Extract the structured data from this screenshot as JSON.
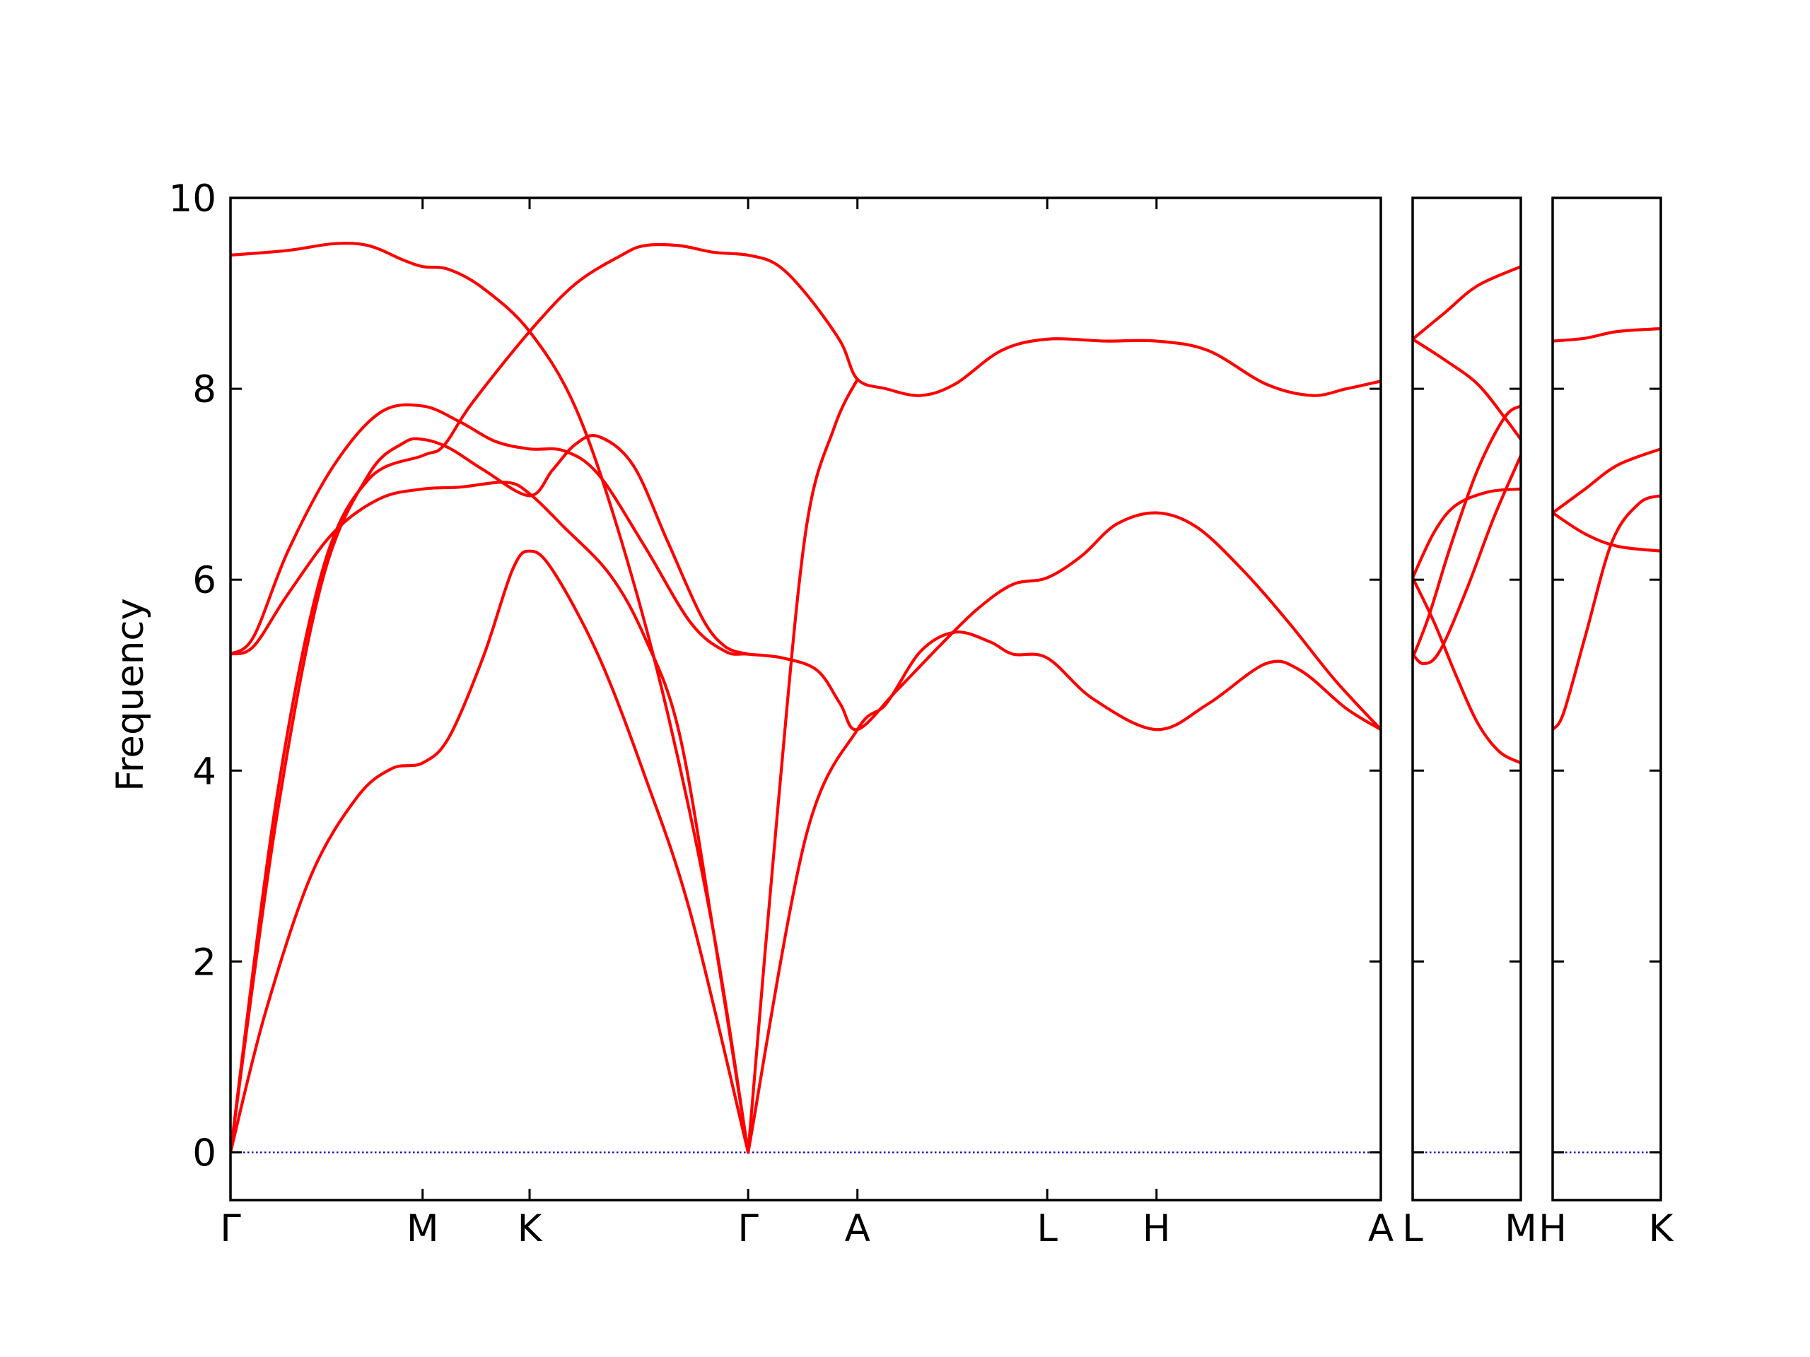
{
  "chart_data": {
    "type": "line",
    "title": "",
    "ylabel": "Frequency",
    "xlabel": "",
    "ylim": [
      -0.5,
      10
    ],
    "yticks": [
      0,
      2,
      4,
      6,
      8,
      10
    ],
    "grid": false,
    "line_color": "#ff0000",
    "zero_line_color": "#0000cc",
    "frame_color": "#000000",
    "panels": [
      {
        "id": "main",
        "x_range": [
          0,
          10
        ],
        "ticks": [
          {
            "x": 0,
            "label": "Γ"
          },
          {
            "x": 1.67,
            "label": "M"
          },
          {
            "x": 2.6,
            "label": "K"
          },
          {
            "x": 4.5,
            "label": "Γ"
          },
          {
            "x": 5.45,
            "label": "A"
          },
          {
            "x": 7.1,
            "label": "L"
          },
          {
            "x": 8.05,
            "label": "H"
          },
          {
            "x": 10,
            "label": "A"
          }
        ],
        "series": [
          {
            "values": [
              [
                0,
                9.4
              ],
              [
                0.5,
                9.45
              ],
              [
                0.9,
                9.52
              ],
              [
                1.2,
                9.5
              ],
              [
                1.5,
                9.35
              ],
              [
                1.67,
                9.28
              ],
              [
                1.9,
                9.25
              ],
              [
                2.2,
                9.05
              ],
              [
                2.6,
                8.6
              ],
              [
                3.0,
                7.8
              ],
              [
                3.4,
                6.4
              ],
              [
                3.8,
                4.6
              ],
              [
                4.2,
                2.3
              ],
              [
                4.5,
                0
              ]
            ]
          },
          {
            "values": [
              [
                0,
                0
              ],
              [
                0.4,
                3.7
              ],
              [
                0.8,
                6.1
              ],
              [
                1.2,
                7.05
              ],
              [
                1.67,
                7.3
              ],
              [
                1.85,
                7.4
              ],
              [
                2.1,
                7.85
              ],
              [
                2.6,
                8.6
              ],
              [
                3.0,
                9.1
              ],
              [
                3.4,
                9.4
              ],
              [
                3.6,
                9.5
              ],
              [
                3.9,
                9.5
              ],
              [
                4.2,
                9.43
              ],
              [
                4.5,
                9.4
              ],
              [
                4.75,
                9.3
              ],
              [
                5.0,
                9.0
              ],
              [
                5.3,
                8.5
              ],
              [
                5.45,
                8.1
              ],
              [
                5.7,
                8.0
              ],
              [
                6.0,
                7.93
              ],
              [
                6.3,
                8.05
              ],
              [
                6.7,
                8.4
              ],
              [
                7.1,
                8.52
              ],
              [
                7.6,
                8.5
              ],
              [
                8.05,
                8.5
              ],
              [
                8.5,
                8.4
              ],
              [
                9.0,
                8.05
              ],
              [
                9.4,
                7.93
              ],
              [
                9.7,
                8.0
              ],
              [
                10,
                8.08
              ]
            ]
          },
          {
            "values": [
              [
                0,
                5.22
              ],
              [
                0.2,
                5.3
              ],
              [
                0.5,
                5.85
              ],
              [
                0.9,
                6.5
              ],
              [
                1.3,
                6.85
              ],
              [
                1.67,
                6.95
              ],
              [
                2.0,
                6.97
              ],
              [
                2.4,
                7.02
              ],
              [
                2.6,
                6.9
              ],
              [
                2.9,
                6.55
              ],
              [
                3.3,
                6.05
              ],
              [
                3.6,
                5.4
              ],
              [
                3.9,
                4.4
              ],
              [
                4.2,
                2.3
              ],
              [
                4.5,
                0
              ]
            ]
          },
          {
            "values": [
              [
                0,
                5.22
              ],
              [
                0.2,
                5.4
              ],
              [
                0.5,
                6.3
              ],
              [
                0.9,
                7.2
              ],
              [
                1.3,
                7.75
              ],
              [
                1.67,
                7.82
              ],
              [
                2.0,
                7.65
              ],
              [
                2.3,
                7.45
              ],
              [
                2.6,
                7.37
              ],
              [
                2.9,
                7.35
              ],
              [
                3.2,
                7.1
              ],
              [
                3.6,
                6.35
              ],
              [
                4.0,
                5.55
              ],
              [
                4.3,
                5.25
              ],
              [
                4.5,
                5.22
              ],
              [
                4.8,
                5.18
              ],
              [
                5.1,
                5.05
              ],
              [
                5.3,
                4.7
              ],
              [
                5.45,
                4.43
              ],
              [
                5.8,
                4.85
              ],
              [
                6.2,
                5.35
              ],
              [
                6.5,
                5.7
              ],
              [
                6.8,
                5.95
              ],
              [
                7.1,
                6.02
              ],
              [
                7.4,
                6.25
              ],
              [
                7.7,
                6.58
              ],
              [
                8.05,
                6.7
              ],
              [
                8.4,
                6.55
              ],
              [
                8.8,
                6.1
              ],
              [
                9.2,
                5.55
              ],
              [
                9.6,
                4.95
              ],
              [
                10,
                4.43
              ]
            ]
          },
          {
            "values": [
              [
                0,
                0
              ],
              [
                0.4,
                3.5
              ],
              [
                0.8,
                6.0
              ],
              [
                1.2,
                7.1
              ],
              [
                1.5,
                7.43
              ],
              [
                1.67,
                7.47
              ],
              [
                1.9,
                7.38
              ],
              [
                2.2,
                7.15
              ],
              [
                2.6,
                6.88
              ],
              [
                2.8,
                7.15
              ],
              [
                3.0,
                7.42
              ],
              [
                3.2,
                7.5
              ],
              [
                3.5,
                7.2
              ],
              [
                3.8,
                6.4
              ],
              [
                4.1,
                5.6
              ],
              [
                4.3,
                5.3
              ],
              [
                4.5,
                5.22
              ]
            ]
          },
          {
            "values": [
              [
                0,
                0
              ],
              [
                0.3,
                1.45
              ],
              [
                0.7,
                2.9
              ],
              [
                1.1,
                3.72
              ],
              [
                1.4,
                4.02
              ],
              [
                1.67,
                4.08
              ],
              [
                1.9,
                4.35
              ],
              [
                2.2,
                5.2
              ],
              [
                2.45,
                6.1
              ],
              [
                2.6,
                6.3
              ],
              [
                2.8,
                6.1
              ],
              [
                3.2,
                5.2
              ],
              [
                3.6,
                3.95
              ],
              [
                4.0,
                2.5
              ],
              [
                4.5,
                0
              ]
            ]
          },
          {
            "values": [
              [
                4.5,
                0
              ],
              [
                5.0,
                3.3
              ],
              [
                5.45,
                4.43
              ],
              [
                5.7,
                4.7
              ],
              [
                6.0,
                5.25
              ],
              [
                6.3,
                5.45
              ],
              [
                6.6,
                5.35
              ],
              [
                6.8,
                5.22
              ],
              [
                7.1,
                5.18
              ],
              [
                7.5,
                4.75
              ],
              [
                8.05,
                4.43
              ],
              [
                8.5,
                4.7
              ],
              [
                9.0,
                5.12
              ],
              [
                9.3,
                5.05
              ],
              [
                9.7,
                4.65
              ],
              [
                10,
                4.43
              ]
            ]
          },
          {
            "values": [
              [
                4.5,
                0
              ],
              [
                4.75,
                3.5
              ],
              [
                5.0,
                6.5
              ],
              [
                5.25,
                7.6
              ],
              [
                5.45,
                8.1
              ]
            ]
          }
        ]
      },
      {
        "id": "LM",
        "x_range": [
          0,
          1
        ],
        "ticks": [
          {
            "x": 0,
            "label": "L"
          },
          {
            "x": 1,
            "label": "M"
          }
        ],
        "series": [
          {
            "values": [
              [
                0,
                8.52
              ],
              [
                0.3,
                8.8
              ],
              [
                0.6,
                9.08
              ],
              [
                1,
                9.28
              ]
            ]
          },
          {
            "values": [
              [
                0,
                8.52
              ],
              [
                0.3,
                8.3
              ],
              [
                0.6,
                8.05
              ],
              [
                0.85,
                7.7
              ],
              [
                1,
                7.47
              ]
            ]
          },
          {
            "values": [
              [
                0,
                6.02
              ],
              [
                0.2,
                5.55
              ],
              [
                0.4,
                5.0
              ],
              [
                0.6,
                4.5
              ],
              [
                0.8,
                4.2
              ],
              [
                1,
                4.08
              ]
            ]
          },
          {
            "values": [
              [
                0,
                6.02
              ],
              [
                0.2,
                6.5
              ],
              [
                0.4,
                6.78
              ],
              [
                0.7,
                6.92
              ],
              [
                1,
                6.95
              ]
            ]
          },
          {
            "values": [
              [
                0,
                5.18
              ],
              [
                0.15,
                5.62
              ],
              [
                0.35,
                6.35
              ],
              [
                0.6,
                7.15
              ],
              [
                0.85,
                7.7
              ],
              [
                1,
                7.82
              ]
            ]
          },
          {
            "values": [
              [
                0,
                5.22
              ],
              [
                0.1,
                5.12
              ],
              [
                0.25,
                5.25
              ],
              [
                0.5,
                5.9
              ],
              [
                0.75,
                6.65
              ],
              [
                1,
                7.3
              ]
            ]
          }
        ]
      },
      {
        "id": "HK",
        "x_range": [
          0,
          1
        ],
        "ticks": [
          {
            "x": 0,
            "label": "H"
          },
          {
            "x": 1,
            "label": "K"
          }
        ],
        "series": [
          {
            "values": [
              [
                0,
                8.5
              ],
              [
                0.3,
                8.53
              ],
              [
                0.6,
                8.6
              ],
              [
                1,
                8.63
              ]
            ]
          },
          {
            "values": [
              [
                0,
                6.7
              ],
              [
                0.3,
                6.95
              ],
              [
                0.6,
                7.2
              ],
              [
                1,
                7.37
              ]
            ]
          },
          {
            "values": [
              [
                0,
                6.7
              ],
              [
                0.3,
                6.48
              ],
              [
                0.6,
                6.35
              ],
              [
                1,
                6.3
              ]
            ]
          },
          {
            "values": [
              [
                0,
                4.43
              ],
              [
                0.1,
                4.6
              ],
              [
                0.3,
                5.4
              ],
              [
                0.55,
                6.4
              ],
              [
                0.8,
                6.8
              ],
              [
                1,
                6.88
              ]
            ]
          }
        ]
      }
    ]
  }
}
